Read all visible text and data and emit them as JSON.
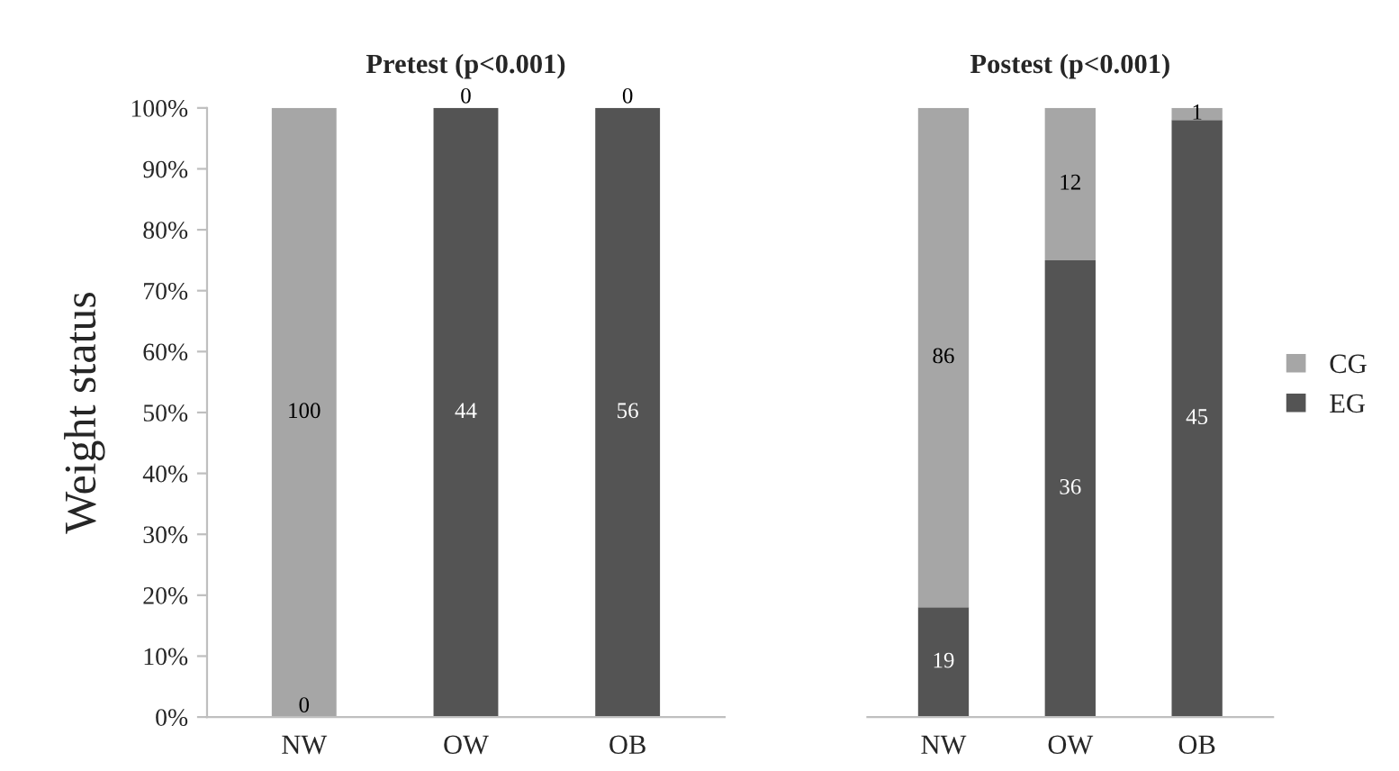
{
  "chart_data": [
    {
      "type": "bar",
      "title": "Pretest (p<0.001)",
      "ylabel": "Weight status",
      "categories": [
        "NW",
        "OW",
        "OB"
      ],
      "stacked": true,
      "series": [
        {
          "name": "EG",
          "color": "#545454",
          "values": [
            0,
            100,
            100
          ]
        },
        {
          "name": "CG",
          "color": "#a6a6a6",
          "values": [
            100,
            0,
            0
          ]
        }
      ],
      "annotations": [
        "0",
        "44",
        "56",
        "100",
        "0",
        "0"
      ],
      "ylim": [
        0,
        100
      ],
      "yticks": [
        {
          "value": 0,
          "label": "0%"
        },
        {
          "value": 10,
          "label": "10%"
        },
        {
          "value": 20,
          "label": "20%"
        },
        {
          "value": 30,
          "label": "30%"
        },
        {
          "value": 40,
          "label": "40%"
        },
        {
          "value": 50,
          "label": "50%"
        },
        {
          "value": 60,
          "label": "60%"
        },
        {
          "value": 70,
          "label": "70%"
        },
        {
          "value": 80,
          "label": "80%"
        },
        {
          "value": 90,
          "label": "90%"
        },
        {
          "value": 100,
          "label": "100%"
        }
      ],
      "grid": false,
      "legend": "right"
    },
    {
      "type": "bar",
      "title": "Postest (p<0.001)",
      "categories": [
        "NW",
        "OW",
        "OB"
      ],
      "stacked": true,
      "series": [
        {
          "name": "EG",
          "color": "#545454",
          "values": [
            18,
            75,
            98
          ]
        },
        {
          "name": "CG",
          "color": "#a6a6a6",
          "values": [
            82,
            25,
            2
          ]
        }
      ],
      "annotations": [
        "19",
        "36",
        "45",
        "86",
        "12",
        "1"
      ],
      "ylim": [
        0,
        100
      ],
      "tick_labels": "x",
      "grid": false,
      "legend": "right"
    }
  ]
}
